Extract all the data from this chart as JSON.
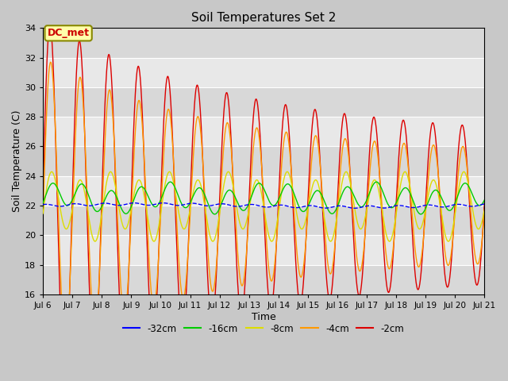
{
  "title": "Soil Temperatures Set 2",
  "xlabel": "Time",
  "ylabel": "Soil Temperature (C)",
  "ylim": [
    16,
    34
  ],
  "annotation": "DC_met",
  "legend_labels": [
    "-32cm",
    "-16cm",
    "-8cm",
    "-4cm",
    "-2cm"
  ],
  "legend_colors": [
    "#0000ff",
    "#00cc00",
    "#dddd00",
    "#ff9900",
    "#dd0000"
  ],
  "fig_color": "#c8c8c8",
  "plot_bg_color": "#e0e0e0",
  "yticks": [
    16,
    18,
    20,
    22,
    24,
    26,
    28,
    30,
    32,
    34
  ],
  "xtick_labels": [
    "Jul 6",
    "Jul 7",
    "Jul 8",
    "Jul 9",
    "Jul 10",
    "Jul 11",
    "Jul 12",
    "Jul 13",
    "Jul 14",
    "Jul 15",
    "Jul 16",
    "Jul 17",
    "Jul 18",
    "Jul 19",
    "Jul 20",
    "Jul 21"
  ],
  "xtick_positions": [
    0,
    1,
    2,
    3,
    4,
    5,
    6,
    7,
    8,
    9,
    10,
    11,
    12,
    13,
    14,
    15
  ],
  "n_days": 15
}
